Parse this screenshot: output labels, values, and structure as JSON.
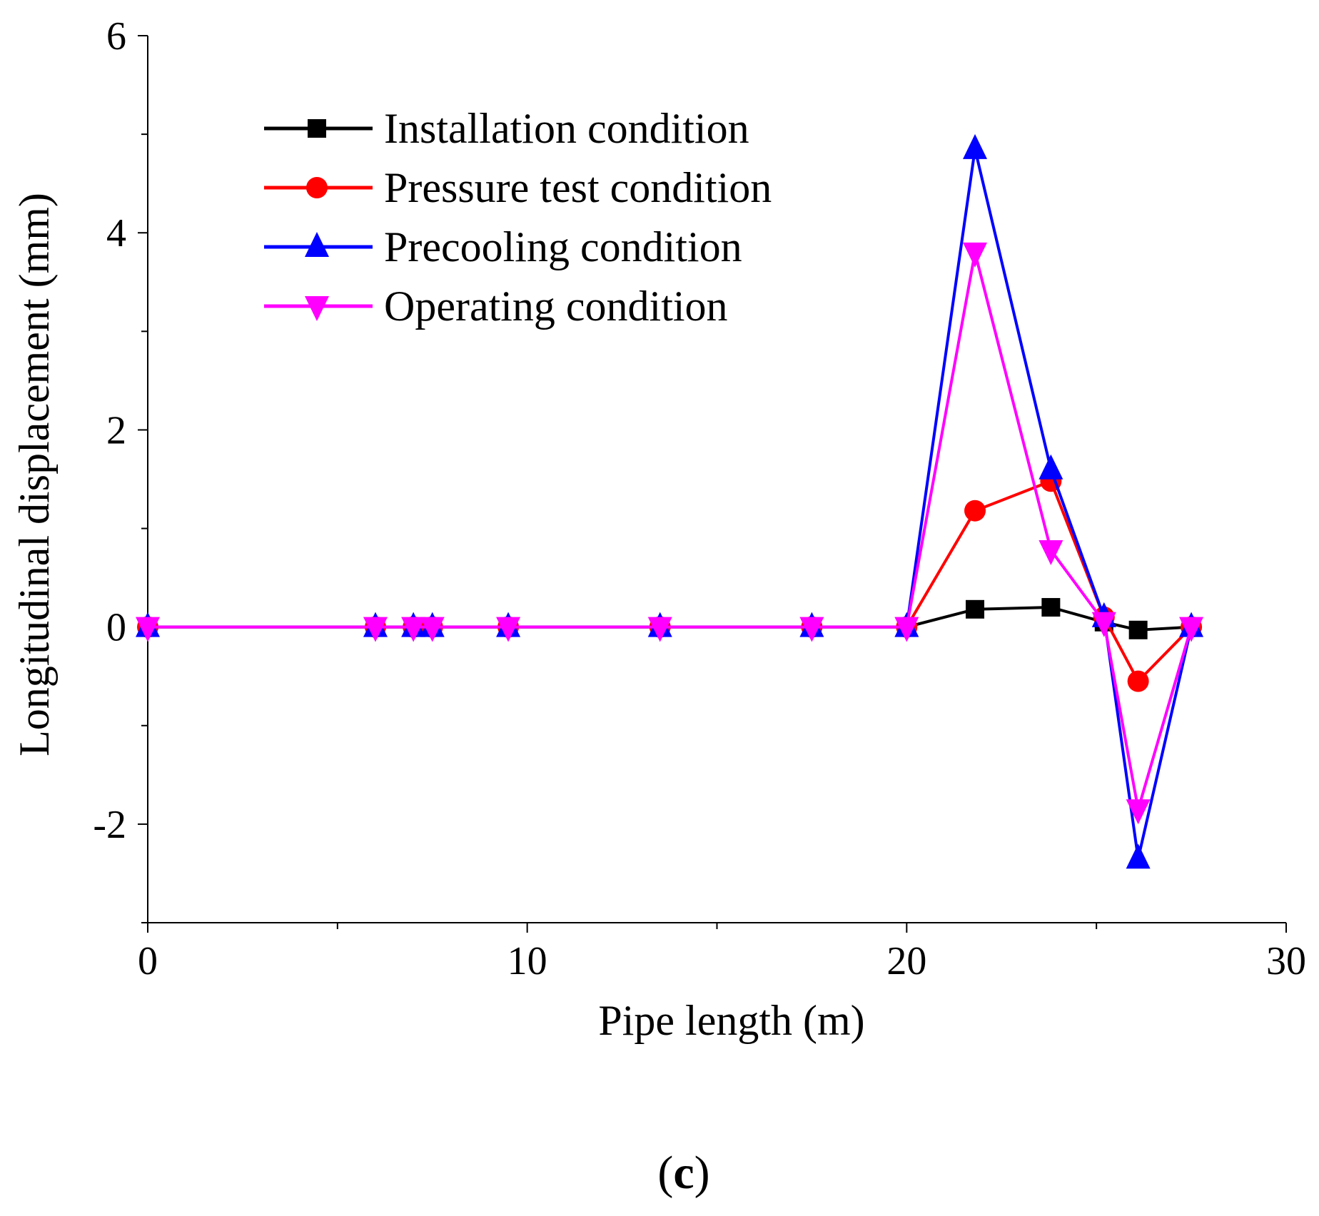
{
  "chart_data": {
    "type": "line",
    "title": "",
    "xlabel": "Pipe length (m)",
    "ylabel": "Longitudinal displacement (mm)",
    "xlim": [
      0,
      30
    ],
    "ylim": [
      -3,
      6
    ],
    "xticks": [
      0,
      10,
      20,
      30
    ],
    "yticks": [
      -2,
      0,
      2,
      4,
      6
    ],
    "xtick_labels": [
      "0",
      "10",
      "20",
      "30"
    ],
    "ytick_labels": [
      "-2",
      "0",
      "2",
      "4",
      "6"
    ],
    "grid": false,
    "legend_position": "top-left",
    "x": [
      0,
      6,
      7,
      7.5,
      9.5,
      13.5,
      17.5,
      20,
      21.8,
      23.8,
      25.2,
      26.1,
      27.5
    ],
    "series": [
      {
        "name": "Installation condition",
        "color": "#000000",
        "marker": "square",
        "values": [
          0,
          0,
          0,
          0,
          0,
          0,
          0,
          0,
          0.18,
          0.2,
          0.05,
          -0.03,
          0
        ]
      },
      {
        "name": "Pressure test condition",
        "color": "#ff0000",
        "marker": "circle",
        "values": [
          0,
          0,
          0,
          0,
          0,
          0,
          0,
          0,
          1.18,
          1.48,
          0.1,
          -0.55,
          0
        ]
      },
      {
        "name": "Precooling condition",
        "color": "#0000ff",
        "marker": "triangle-up",
        "values": [
          0,
          0,
          0,
          0,
          0,
          0,
          0,
          0,
          4.85,
          1.6,
          0.1,
          -2.35,
          0
        ]
      },
      {
        "name": "Operating condition",
        "color": "#ff00ff",
        "marker": "triangle-down",
        "values": [
          0,
          0,
          0,
          0,
          0,
          0,
          0,
          0,
          3.8,
          0.78,
          0.05,
          -1.85,
          0
        ]
      }
    ],
    "panel_label": {
      "open": "(",
      "letter": "c",
      "close": ")"
    }
  }
}
